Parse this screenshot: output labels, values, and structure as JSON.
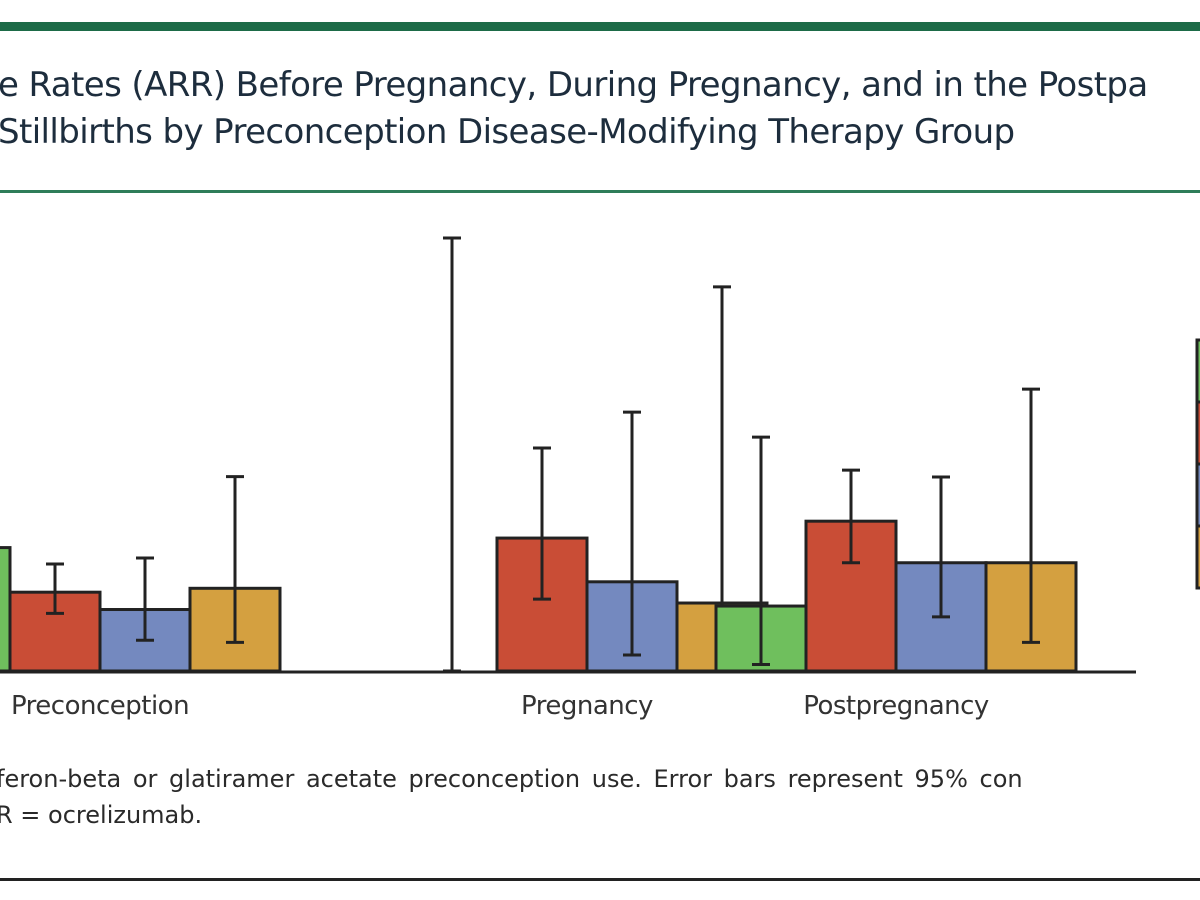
{
  "figure": {
    "title_line_1": "e Rates (ARR) Before Pregnancy, During Pregnancy, and in the Postpa",
    "title_line_2": "Stillbirths by Preconception Disease-Modifying Therapy Group",
    "caption_line_1": "feron-beta or glatiramer acetate preconception use. Error bars represent 95% con",
    "caption_line_2": "R = ocrelizumab."
  },
  "colors": {
    "series": [
      "#6fbf5d",
      "#c94d36",
      "#7489bf",
      "#d4a040"
    ],
    "outline": "#222222",
    "rule_green": "#1d6b47",
    "text": "#1d2d3d"
  },
  "chart_data": {
    "type": "bar",
    "categories": [
      "Preconception",
      "Pregnancy",
      "Postpregnancy"
    ],
    "ylim": [
      0,
      1.0
    ],
    "series": [
      {
        "values": [
          0.285,
          0.0,
          0.15
        ],
        "ci_low": [
          0.0,
          0.0,
          0.015
        ],
        "ci_high": [
          0.285,
          1.0,
          0.54
        ]
      },
      {
        "values": [
          0.182,
          0.307,
          0.346
        ],
        "ci_low": [
          0.133,
          0.166,
          0.25
        ],
        "ci_high": [
          0.247,
          0.515,
          0.464
        ]
      },
      {
        "values": [
          0.142,
          0.206,
          0.25
        ],
        "ci_low": [
          0.071,
          0.037,
          0.125
        ],
        "ci_high": [
          0.261,
          0.598,
          0.448
        ]
      },
      {
        "values": [
          0.191,
          0.157,
          0.25
        ],
        "ci_low": [
          0.066,
          0.0,
          0.066
        ],
        "ci_high": [
          0.449,
          0.887,
          0.651
        ]
      }
    ],
    "grid": false,
    "legend": "right (swatches only, labels cropped)"
  }
}
